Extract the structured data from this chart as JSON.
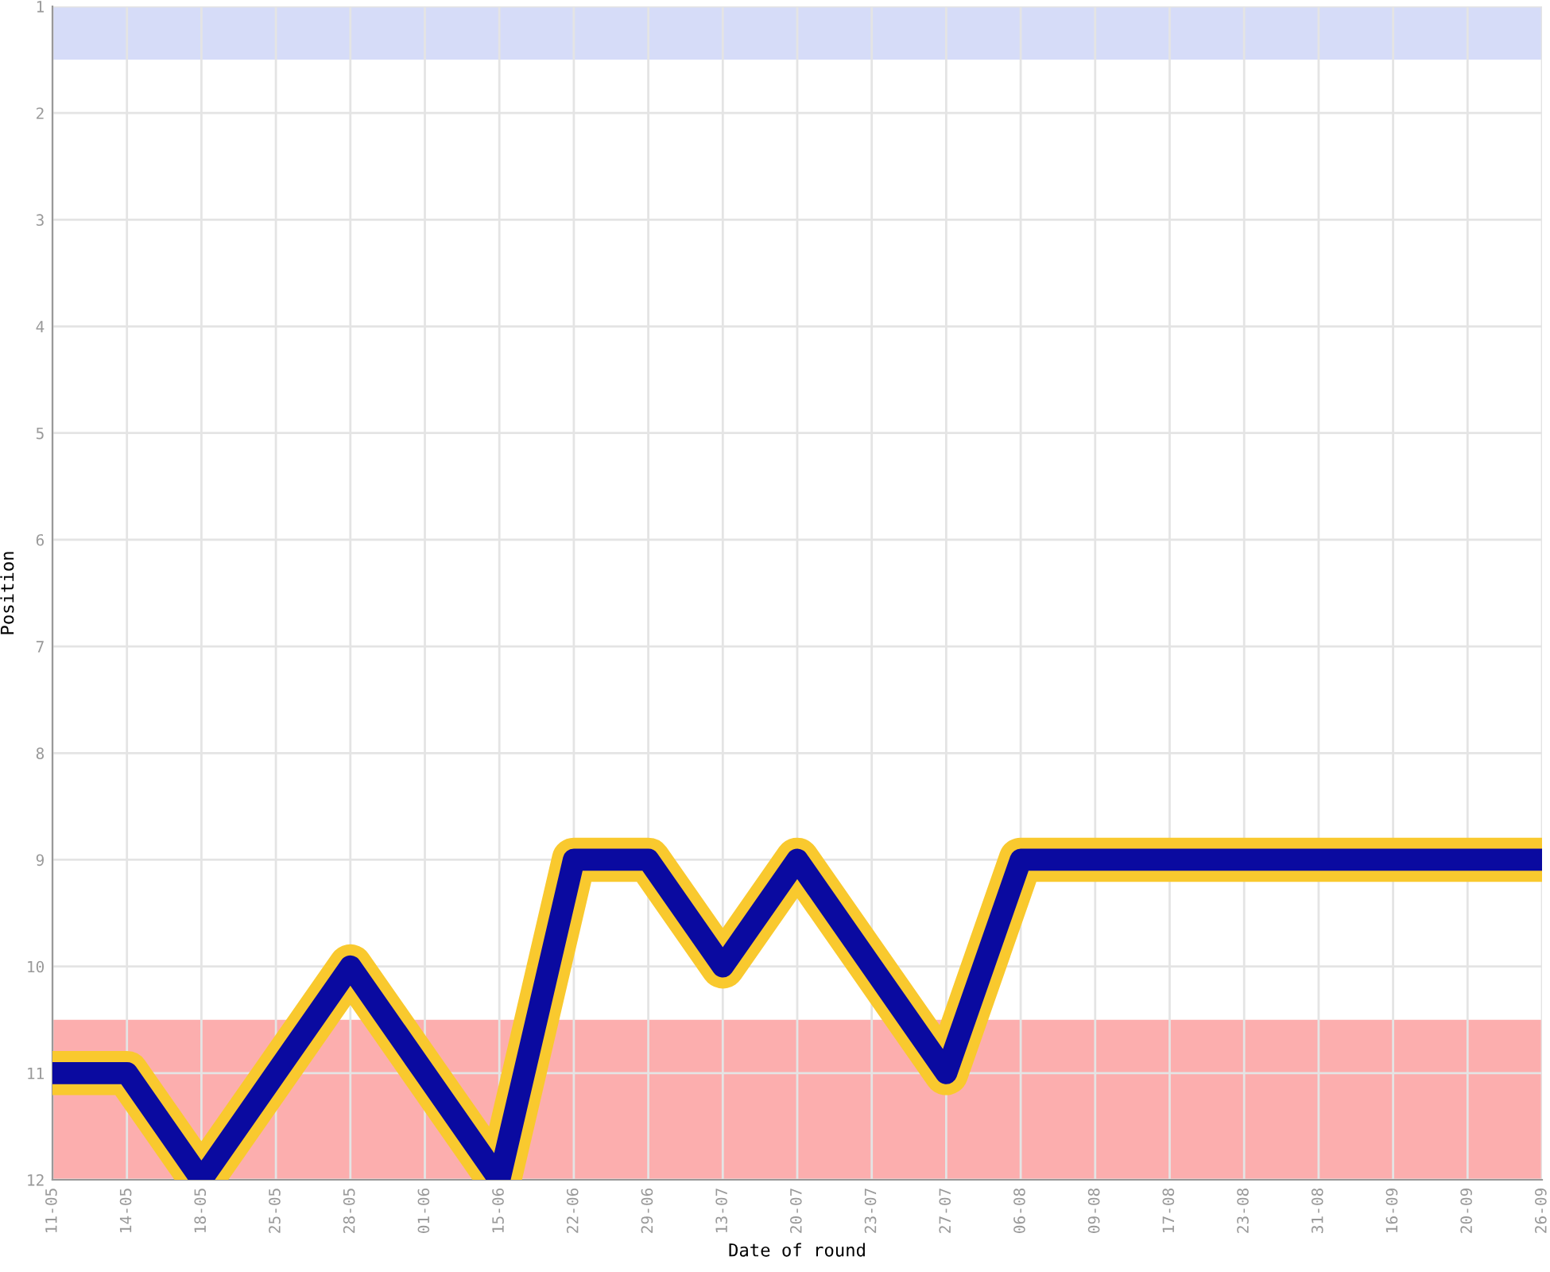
{
  "chart_data": {
    "type": "line",
    "xlabel": "Date of round",
    "ylabel": "Position",
    "categories": [
      "11-05",
      "14-05",
      "18-05",
      "25-05",
      "28-05",
      "01-06",
      "15-06",
      "22-06",
      "29-06",
      "13-07",
      "20-07",
      "23-07",
      "27-07",
      "06-08",
      "09-08",
      "17-08",
      "23-08",
      "31-08",
      "16-09",
      "20-09",
      "26-09"
    ],
    "series": [
      {
        "color": "#0a0aa0",
        "values": [
          11,
          11,
          12,
          11,
          10,
          11,
          12,
          9,
          9,
          10,
          9,
          10,
          11,
          9,
          9,
          9,
          9,
          9,
          9,
          9,
          9
        ]
      }
    ],
    "ylim": [
      12,
      1
    ],
    "yticks": [
      1,
      2,
      3,
      4,
      5,
      6,
      7,
      8,
      9,
      10,
      11,
      12
    ],
    "bands": [
      {
        "axis": "y",
        "from": 1,
        "to": 1.5,
        "color": "#d6dcf8"
      },
      {
        "axis": "y",
        "from": 10.5,
        "to": 12,
        "color": "#fcaeae"
      }
    ],
    "grid": true,
    "marker": "none",
    "line_style": "solid"
  }
}
